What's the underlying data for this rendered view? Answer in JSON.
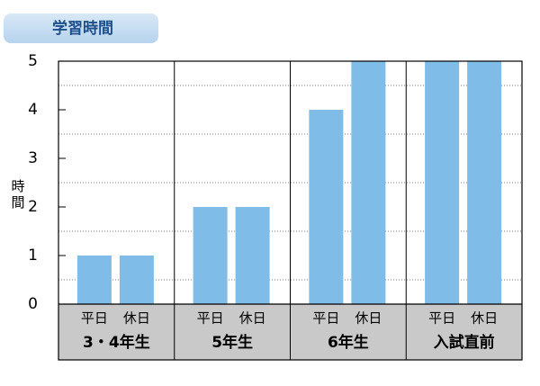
{
  "chart_data": {
    "type": "grouped_bar",
    "title": "学習時間",
    "y_label": "時間",
    "categories": [
      "3・4年生",
      "5年生",
      "6年生",
      "入試直前"
    ],
    "series": [
      {
        "name": "平日",
        "color": "#7fbde8",
        "values": [
          1,
          2,
          4,
          5
        ]
      },
      {
        "name": "休日",
        "color": "#7fbde8",
        "values": [
          1,
          2,
          5,
          5
        ]
      }
    ],
    "ylim": [
      0,
      5
    ],
    "yticks": [
      0,
      1,
      2,
      3,
      4,
      5
    ],
    "minor_yticks": [
      0.5,
      1.5,
      2.5,
      3.5,
      4.5
    ],
    "grid": true
  }
}
